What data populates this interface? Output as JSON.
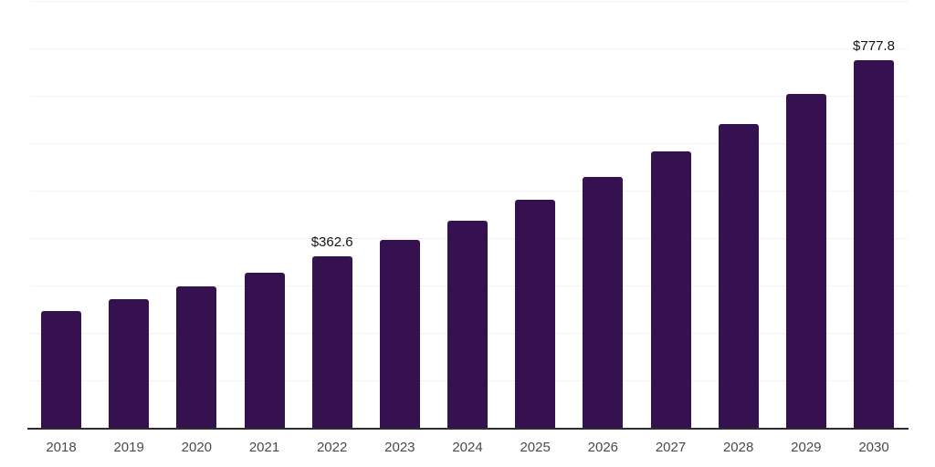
{
  "chart_data": {
    "type": "bar",
    "title": "",
    "xlabel": "",
    "ylabel": "",
    "categories": [
      "2018",
      "2019",
      "2020",
      "2021",
      "2022",
      "2023",
      "2024",
      "2025",
      "2026",
      "2027",
      "2028",
      "2029",
      "2030"
    ],
    "values": [
      247.8,
      272.5,
      299.8,
      329.7,
      362.6,
      398.9,
      438.8,
      482.6,
      530.9,
      584.0,
      642.4,
      706.7,
      777.8
    ],
    "data_labels": [
      {
        "category": "2022",
        "text": "$362.6"
      },
      {
        "category": "2030",
        "text": "$777.8"
      }
    ],
    "ylim": [
      0,
      900
    ],
    "grid_step": 100,
    "grid": "horizontal",
    "y_tick_labels_visible": false,
    "legend": "none",
    "colors": {
      "bar": "#36114F",
      "grid": "#f2f2f2",
      "axis": "#2e2e2e",
      "tick_label": "#4a4a4a",
      "data_label": "#141414"
    }
  }
}
